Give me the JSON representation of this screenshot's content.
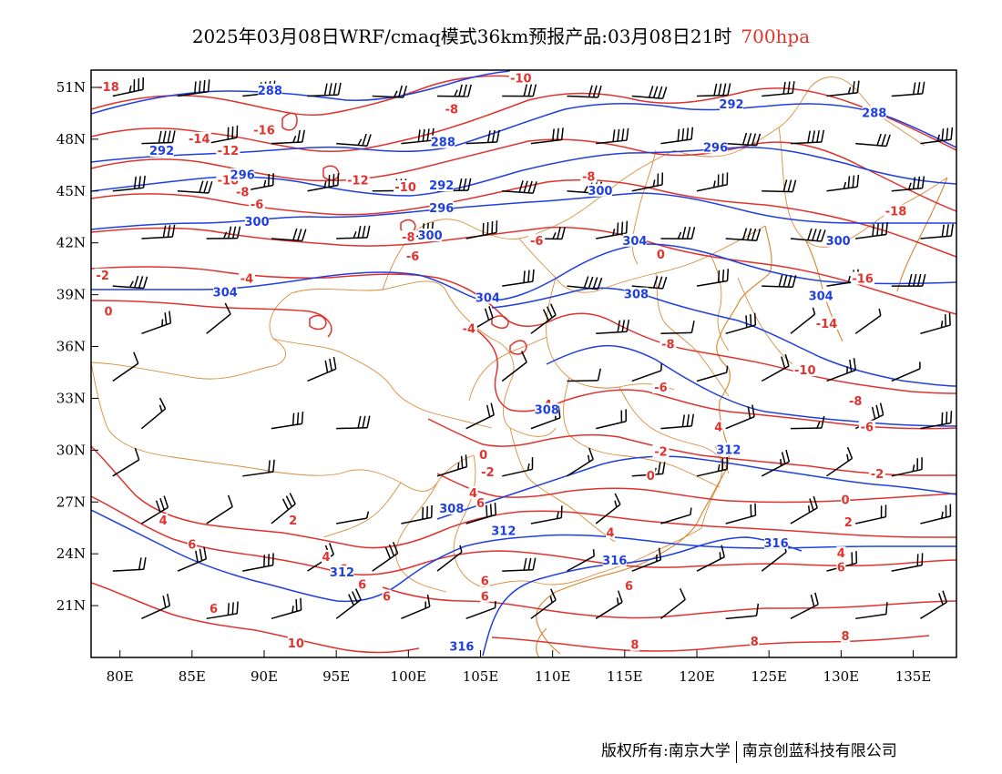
{
  "title": {
    "main": "2025年03月08日WRF/cmaq模式36km预报产品:03月08日21时",
    "level": "700hpa",
    "level_color": "#e0332e"
  },
  "axes": {
    "lat_labels": [
      "51N",
      "48N",
      "45N",
      "42N",
      "39N",
      "36N",
      "33N",
      "30N",
      "27N",
      "24N",
      "21N"
    ],
    "lat_values": [
      51,
      48,
      45,
      42,
      39,
      36,
      33,
      30,
      27,
      24,
      21
    ],
    "lon_labels": [
      "80E",
      "85E",
      "90E",
      "95E",
      "100E",
      "105E",
      "110E",
      "115E",
      "120E",
      "125E",
      "130E",
      "135E"
    ],
    "lon_values": [
      80,
      85,
      90,
      95,
      100,
      105,
      110,
      115,
      120,
      125,
      130,
      135
    ],
    "lon_range": [
      78,
      138
    ],
    "lat_range": [
      18,
      52
    ]
  },
  "colors": {
    "temperature": "#e0332e",
    "geopotential": "#1f3fe0",
    "boundary": "#d98c3a",
    "wind_barbs": "#000000"
  },
  "temperature_labels": [
    {
      "text": "-18",
      "lon": 79.2,
      "lat": 51.0
    },
    {
      "text": "-14",
      "lon": 85.5,
      "lat": 48.0
    },
    {
      "text": "-12",
      "lon": 87.5,
      "lat": 47.3
    },
    {
      "text": "-16",
      "lon": 90.0,
      "lat": 48.5
    },
    {
      "text": "-10",
      "lon": 87.5,
      "lat": 45.6
    },
    {
      "text": "-8",
      "lon": 88.5,
      "lat": 44.9
    },
    {
      "text": "-6",
      "lon": 89.5,
      "lat": 44.2
    },
    {
      "text": "-12",
      "lon": 96.5,
      "lat": 45.6
    },
    {
      "text": "-10",
      "lon": 99.8,
      "lat": 45.2
    },
    {
      "text": "-8",
      "lon": 103.0,
      "lat": 49.7
    },
    {
      "text": "-10",
      "lon": 107.8,
      "lat": 51.5
    },
    {
      "text": "-8",
      "lon": 112.5,
      "lat": 45.8
    },
    {
      "text": "-8",
      "lon": 100.0,
      "lat": 42.3
    },
    {
      "text": "-6",
      "lon": 100.3,
      "lat": 41.2
    },
    {
      "text": "-6",
      "lon": 108.9,
      "lat": 42.1
    },
    {
      "text": "-2",
      "lon": 78.8,
      "lat": 40.1
    },
    {
      "text": "-4",
      "lon": 88.8,
      "lat": 39.9
    },
    {
      "text": "0",
      "lon": 79.2,
      "lat": 38.0
    },
    {
      "text": "-4",
      "lon": 104.2,
      "lat": 37.0
    },
    {
      "text": "0",
      "lon": 117.5,
      "lat": 41.3
    },
    {
      "text": "-16",
      "lon": 131.5,
      "lat": 39.9
    },
    {
      "text": "-18",
      "lon": 133.8,
      "lat": 43.8
    },
    {
      "text": "-14",
      "lon": 129.0,
      "lat": 37.3
    },
    {
      "text": "-8",
      "lon": 118.0,
      "lat": 36.1
    },
    {
      "text": "-10",
      "lon": 127.5,
      "lat": 34.6
    },
    {
      "text": "-6",
      "lon": 117.5,
      "lat": 33.6
    },
    {
      "text": "-4",
      "lon": 109.5,
      "lat": 32.6
    },
    {
      "text": "-8",
      "lon": 131.0,
      "lat": 32.8
    },
    {
      "text": "-6",
      "lon": 131.8,
      "lat": 31.3
    },
    {
      "text": "4",
      "lon": 121.5,
      "lat": 31.3
    },
    {
      "text": "-2",
      "lon": 117.5,
      "lat": 29.9
    },
    {
      "text": "-2",
      "lon": 132.5,
      "lat": 28.6
    },
    {
      "text": "-2",
      "lon": 105.5,
      "lat": 28.7
    },
    {
      "text": "0",
      "lon": 105.2,
      "lat": 29.7
    },
    {
      "text": "0",
      "lon": 116.8,
      "lat": 28.5
    },
    {
      "text": "0",
      "lon": 130.3,
      "lat": 27.1
    },
    {
      "text": "2",
      "lon": 130.5,
      "lat": 25.8
    },
    {
      "text": "4",
      "lon": 104.5,
      "lat": 27.5
    },
    {
      "text": "6",
      "lon": 105.0,
      "lat": 26.9
    },
    {
      "text": "4",
      "lon": 83.0,
      "lat": 25.9
    },
    {
      "text": "2",
      "lon": 92.0,
      "lat": 25.9
    },
    {
      "text": "6",
      "lon": 85.0,
      "lat": 24.5
    },
    {
      "text": "4",
      "lon": 94.3,
      "lat": 23.8
    },
    {
      "text": "6",
      "lon": 95.5,
      "lat": 23.1
    },
    {
      "text": "6",
      "lon": 96.8,
      "lat": 22.2
    },
    {
      "text": "6",
      "lon": 98.5,
      "lat": 21.5
    },
    {
      "text": "6",
      "lon": 105.3,
      "lat": 22.4
    },
    {
      "text": "6",
      "lon": 105.3,
      "lat": 21.5
    },
    {
      "text": "4",
      "lon": 114.0,
      "lat": 25.2
    },
    {
      "text": "6",
      "lon": 115.3,
      "lat": 22.1
    },
    {
      "text": "4",
      "lon": 130.0,
      "lat": 24.0
    },
    {
      "text": "6",
      "lon": 130.0,
      "lat": 23.2
    },
    {
      "text": "6",
      "lon": 86.5,
      "lat": 20.8
    },
    {
      "text": "10",
      "lon": 92.2,
      "lat": 18.8
    },
    {
      "text": "8",
      "lon": 115.7,
      "lat": 18.7
    },
    {
      "text": "8",
      "lon": 124.0,
      "lat": 18.9
    },
    {
      "text": "8",
      "lon": 130.3,
      "lat": 19.2
    }
  ],
  "geopotential_labels": [
    {
      "text": "288",
      "lon": 90.4,
      "lat": 50.8
    },
    {
      "text": "288",
      "lon": 102.4,
      "lat": 47.8
    },
    {
      "text": "292",
      "lon": 82.9,
      "lat": 47.3
    },
    {
      "text": "296",
      "lon": 88.5,
      "lat": 45.9
    },
    {
      "text": "292",
      "lon": 102.3,
      "lat": 45.3
    },
    {
      "text": "296",
      "lon": 102.3,
      "lat": 44.0
    },
    {
      "text": "300",
      "lon": 89.5,
      "lat": 43.2
    },
    {
      "text": "300",
      "lon": 101.5,
      "lat": 42.4
    },
    {
      "text": "292",
      "lon": 122.4,
      "lat": 50.0
    },
    {
      "text": "288",
      "lon": 132.3,
      "lat": 49.5
    },
    {
      "text": "296",
      "lon": 121.3,
      "lat": 47.5
    },
    {
      "text": "300",
      "lon": 113.3,
      "lat": 45.0
    },
    {
      "text": "304",
      "lon": 115.7,
      "lat": 42.1
    },
    {
      "text": "300",
      "lon": 129.8,
      "lat": 42.1
    },
    {
      "text": "304",
      "lon": 87.3,
      "lat": 39.1
    },
    {
      "text": "304",
      "lon": 105.5,
      "lat": 38.8
    },
    {
      "text": "308",
      "lon": 115.8,
      "lat": 39.0
    },
    {
      "text": "304",
      "lon": 128.6,
      "lat": 38.9
    },
    {
      "text": "308",
      "lon": 109.6,
      "lat": 32.3
    },
    {
      "text": "312",
      "lon": 122.2,
      "lat": 30.0
    },
    {
      "text": "308",
      "lon": 103.0,
      "lat": 26.6
    },
    {
      "text": "312",
      "lon": 106.6,
      "lat": 25.3
    },
    {
      "text": "316",
      "lon": 114.3,
      "lat": 23.6
    },
    {
      "text": "312",
      "lon": 95.4,
      "lat": 22.9
    },
    {
      "text": "316",
      "lon": 125.5,
      "lat": 24.6
    },
    {
      "text": "316",
      "lon": 103.7,
      "lat": 18.6
    }
  ],
  "footer": {
    "copyright": "版权所有:南京大学",
    "company": "南京创蓝科技有限公司"
  }
}
